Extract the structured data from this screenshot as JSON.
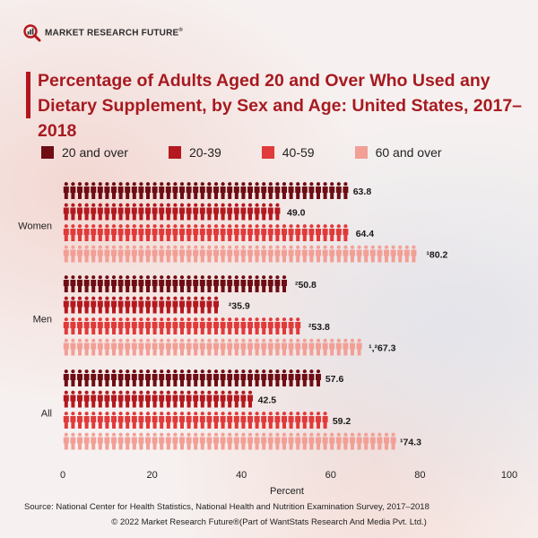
{
  "header": {
    "logo_text": "MARKET RESEARCH FUTURE",
    "logo_trademark": "®"
  },
  "title": "Percentage of Adults Aged 20 and Over Who Used any Dietary Supplement, by Sex and Age: United States, 2017–2018",
  "legend": [
    {
      "label": "20 and over",
      "color": "#6e0d14"
    },
    {
      "label": "20-39",
      "color": "#b3191f"
    },
    {
      "label": "40-59",
      "color": "#e13a3a"
    },
    {
      "label": "60 and over",
      "color": "#f29f96"
    }
  ],
  "chart_data": {
    "type": "bar",
    "orientation": "horizontal",
    "style": "pictograph",
    "categories": [
      "Women",
      "Men",
      "All"
    ],
    "series": [
      {
        "name": "20 and over",
        "values": [
          63.8,
          50.8,
          57.6
        ],
        "labels": [
          "63.8",
          "²50.8",
          "57.6"
        ]
      },
      {
        "name": "20-39",
        "values": [
          49.0,
          35.9,
          42.5
        ],
        "labels": [
          "49.0",
          "²35.9",
          "42.5"
        ]
      },
      {
        "name": "40-59",
        "values": [
          64.4,
          53.8,
          59.2
        ],
        "labels": [
          "64.4",
          "²53.8",
          "59.2"
        ]
      },
      {
        "name": "60 and over",
        "values": [
          80.2,
          67.3,
          74.3
        ],
        "labels": [
          "¹80.2",
          "¹,²67.3",
          "¹74.3"
        ]
      }
    ],
    "xlabel": "Percent",
    "xlim": [
      0,
      100
    ],
    "xticks": [
      "0",
      "20",
      "40",
      "60",
      "80",
      "100"
    ],
    "colors": [
      "#6e0d14",
      "#b3191f",
      "#e13a3a",
      "#f29f96"
    ]
  },
  "footer": {
    "source": "Source: National Center for Health Statistics, National Health and Nutrition Examination Survey, 2017–2018",
    "copyright": "© 2022 Market Research Future®(Part of WantStats Research And Media Pvt. Ltd.)"
  }
}
